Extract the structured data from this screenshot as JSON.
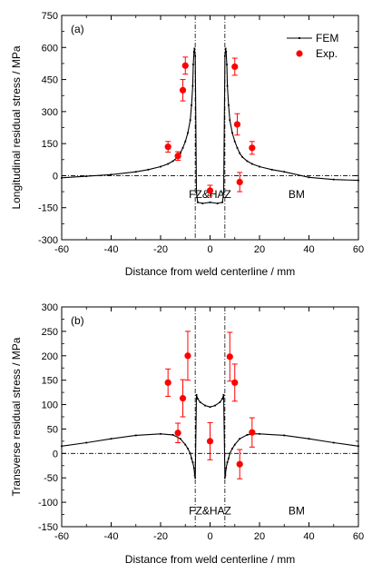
{
  "chart_data": [
    {
      "type": "line",
      "panel_label": "(a)",
      "xlabel": "Distance from weld centerline / mm",
      "ylabel": "Longitudinal residual stress / MPa",
      "xlim": [
        -60,
        60
      ],
      "ylim": [
        -300,
        750
      ],
      "xticks": [
        -60,
        -40,
        -20,
        0,
        20,
        40,
        60
      ],
      "yticks": [
        -300,
        -150,
        0,
        150,
        300,
        450,
        600,
        750
      ],
      "grid": false,
      "legend_position": "top-right",
      "zone_boundaries": [
        -6,
        6
      ],
      "annotations": [
        {
          "text": "FZ&HAZ",
          "x": 0,
          "y": -105
        },
        {
          "text": "BM",
          "x": 35,
          "y": -105
        }
      ],
      "series": [
        {
          "name": "FEM",
          "style": "line-with-small-markers",
          "color": "#000000",
          "x": [
            -60,
            -50,
            -40,
            -30,
            -25,
            -20,
            -17,
            -15,
            -13,
            -12,
            -11,
            -10,
            -9,
            -8,
            -7.5,
            -7,
            -6.8,
            -6.5,
            -6.3,
            -6,
            -5.5,
            -5,
            -3,
            0,
            3,
            5,
            5.5,
            6,
            6.3,
            6.5,
            6.8,
            7,
            7.5,
            8,
            9,
            10,
            11,
            12,
            13,
            15,
            17,
            20,
            25,
            30,
            40,
            50,
            60
          ],
          "y": [
            -10,
            -3,
            5,
            18,
            28,
            42,
            55,
            68,
            88,
            105,
            130,
            160,
            200,
            260,
            330,
            420,
            520,
            580,
            595,
            560,
            -80,
            -125,
            -130,
            -125,
            -130,
            -125,
            -80,
            560,
            595,
            580,
            520,
            420,
            330,
            260,
            200,
            160,
            130,
            105,
            88,
            68,
            55,
            42,
            28,
            18,
            -8,
            -18,
            -22
          ]
        },
        {
          "name": "Exp.",
          "style": "markers-with-error-bars",
          "color": "#ff0000",
          "x": [
            -17,
            -13,
            -11,
            -10,
            0,
            10,
            11,
            12,
            17
          ],
          "y": [
            135,
            92,
            400,
            515,
            -70,
            510,
            240,
            -30,
            130
          ],
          "error": [
            25,
            20,
            50,
            40,
            25,
            40,
            50,
            45,
            30
          ]
        }
      ]
    },
    {
      "type": "line",
      "panel_label": "(b)",
      "xlabel": "Distance from weld centerline / mm",
      "ylabel": "Transverse residual stress / MPa",
      "xlim": [
        -60,
        60
      ],
      "ylim": [
        -150,
        300
      ],
      "xticks": [
        -60,
        -40,
        -20,
        0,
        20,
        40,
        60
      ],
      "yticks": [
        -150,
        -100,
        -50,
        0,
        50,
        100,
        150,
        200,
        250,
        300
      ],
      "grid": false,
      "zone_boundaries": [
        -6,
        6
      ],
      "annotations": [
        {
          "text": "FZ&HAZ",
          "x": 0,
          "y": -125
        },
        {
          "text": "BM",
          "x": 35,
          "y": -125
        }
      ],
      "series": [
        {
          "name": "FEM",
          "style": "line-with-small-markers",
          "color": "#000000",
          "x": [
            -60,
            -50,
            -40,
            -30,
            -20,
            -15,
            -12,
            -10,
            -9,
            -8,
            -7.5,
            -7,
            -6.5,
            -6.2,
            -6,
            -5.5,
            -5,
            -4,
            -2,
            0,
            2,
            4,
            5,
            5.5,
            6,
            6.2,
            6.5,
            7,
            7.5,
            8,
            9,
            10,
            12,
            15,
            17,
            20,
            30,
            40,
            50,
            60
          ],
          "y": [
            15,
            22,
            30,
            37,
            40,
            38,
            30,
            18,
            10,
            0,
            -10,
            -18,
            -30,
            -45,
            -50,
            120,
            112,
            105,
            98,
            95,
            98,
            105,
            112,
            120,
            -50,
            -45,
            -30,
            -18,
            -10,
            0,
            10,
            18,
            30,
            38,
            40,
            40,
            37,
            30,
            22,
            15
          ]
        },
        {
          "name": "Exp.",
          "style": "markers-with-error-bars",
          "color": "#ff0000",
          "x": [
            -17,
            -13,
            -11,
            -9,
            0,
            8,
            10,
            12,
            17
          ],
          "y": [
            145,
            42,
            113,
            200,
            25,
            198,
            145,
            -22,
            43
          ],
          "error": [
            28,
            20,
            38,
            50,
            38,
            50,
            38,
            30,
            30
          ]
        }
      ]
    }
  ]
}
